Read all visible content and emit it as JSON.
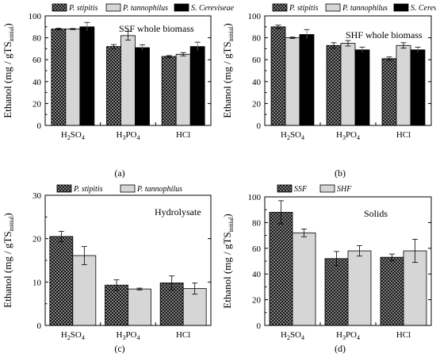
{
  "chart_data": [
    {
      "type": "bar",
      "panel_label": "(a)",
      "annotation": "SSF whole biomass",
      "ylabel": "Ethanol (mg / gTS",
      "ylabel_sub": "initial",
      "ylabel_close": ")",
      "ylim": [
        0,
        100
      ],
      "yticks": [
        0,
        20,
        40,
        60,
        80,
        100
      ],
      "categories": [
        "H2SO4",
        "H3PO4",
        "HCl"
      ],
      "series": [
        {
          "name": "P. stipitis",
          "style": "hatch",
          "values": [
            88,
            72,
            63
          ],
          "errors": [
            0.8,
            1.8,
            0.8
          ]
        },
        {
          "name": "P. tannophilus",
          "style": "light",
          "values": [
            88,
            82,
            65
          ],
          "errors": [
            0.5,
            4,
            1.5
          ]
        },
        {
          "name": "S. Cereviseae",
          "style": "black",
          "values": [
            90,
            71,
            72
          ],
          "errors": [
            4,
            2.5,
            4
          ]
        }
      ]
    },
    {
      "type": "bar",
      "panel_label": "(b)",
      "annotation": "SHF whole biomass",
      "ylabel": "Ethanol (mg / gTS",
      "ylabel_sub": "initial",
      "ylabel_close": ")",
      "ylim": [
        0,
        100
      ],
      "yticks": [
        0,
        20,
        40,
        60,
        80,
        100
      ],
      "categories": [
        "H2SO4",
        "H3PO4",
        "HCl"
      ],
      "series": [
        {
          "name": "P. stipitis",
          "style": "hatch",
          "values": [
            90,
            73,
            61
          ],
          "errors": [
            1.5,
            2.5,
            1.5
          ]
        },
        {
          "name": "P. tannophilus",
          "style": "light",
          "values": [
            80,
            75,
            73
          ],
          "errors": [
            0.6,
            2.5,
            2.5
          ]
        },
        {
          "name": "S. Cereviseae",
          "style": "black",
          "values": [
            83,
            69,
            69
          ],
          "errors": [
            4.5,
            2.5,
            2.5
          ]
        }
      ]
    },
    {
      "type": "bar",
      "panel_label": "(c)",
      "annotation": "Hydrolysate",
      "ylabel": "Ethanol (mg / gTS",
      "ylabel_sub": "initial",
      "ylabel_close": ")",
      "ylim": [
        0,
        30
      ],
      "yticks": [
        0,
        10,
        20,
        30
      ],
      "categories": [
        "H2SO4",
        "H3PO4",
        "HCl"
      ],
      "series": [
        {
          "name": "P. stipitis",
          "style": "hatch",
          "values": [
            20.5,
            9.3,
            9.8
          ],
          "errors": [
            1.2,
            1.2,
            1.6
          ]
        },
        {
          "name": "P. tannophilus",
          "style": "light",
          "values": [
            16.1,
            8.4,
            8.5
          ],
          "errors": [
            2.1,
            0.2,
            1.3
          ]
        }
      ]
    },
    {
      "type": "bar",
      "panel_label": "(d)",
      "annotation": "Solids",
      "ylabel": "Ethanol (mg / gTS",
      "ylabel_sub": "initial",
      "ylabel_close": ")",
      "ylim": [
        0,
        100
      ],
      "yticks": [
        0,
        20,
        40,
        60,
        80,
        100
      ],
      "categories": [
        "H2SO4",
        "H3PO4",
        "HCl"
      ],
      "series": [
        {
          "name": "SSF",
          "style": "hatch",
          "values": [
            88,
            52,
            53
          ],
          "errors": [
            9,
            5.5,
            2.5
          ]
        },
        {
          "name": "SHF",
          "style": "light",
          "values": [
            72,
            58,
            58
          ],
          "errors": [
            3,
            4,
            9
          ]
        }
      ]
    }
  ]
}
